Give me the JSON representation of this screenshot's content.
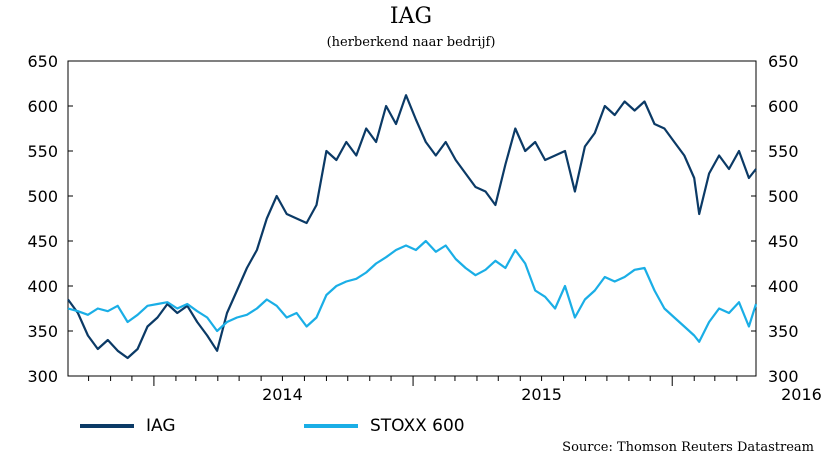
{
  "chart_data": {
    "type": "line",
    "title": "IAG",
    "subtitle": "(herberkend naar bedrijf)",
    "ylim": [
      300,
      650
    ],
    "y_ticks": [
      300,
      350,
      400,
      450,
      500,
      550,
      600,
      650
    ],
    "y_tick_labels": [
      "300",
      "350",
      "400",
      "450",
      "500",
      "550",
      "600",
      "650"
    ],
    "x_range": [
      "2013-09-02",
      "2016-04-28"
    ],
    "x_ticks": [
      "2014",
      "2015",
      "2016"
    ],
    "grid": false,
    "legend": "bottom-left",
    "source": "Source: Thomson Reuters Datastream",
    "series": [
      {
        "name": "IAG",
        "color": "#0b3a66",
        "points": [
          [
            "2013-09-02",
            385
          ],
          [
            "2013-09-16",
            370
          ],
          [
            "2013-09-30",
            345
          ],
          [
            "2013-10-14",
            330
          ],
          [
            "2013-10-28",
            340
          ],
          [
            "2013-11-11",
            328
          ],
          [
            "2013-11-25",
            320
          ],
          [
            "2013-12-09",
            330
          ],
          [
            "2013-12-23",
            355
          ],
          [
            "2014-01-06",
            365
          ],
          [
            "2014-01-20",
            380
          ],
          [
            "2014-02-03",
            370
          ],
          [
            "2014-02-17",
            378
          ],
          [
            "2014-03-03",
            360
          ],
          [
            "2014-03-17",
            345
          ],
          [
            "2014-03-31",
            328
          ],
          [
            "2014-04-14",
            370
          ],
          [
            "2014-04-28",
            395
          ],
          [
            "2014-05-12",
            420
          ],
          [
            "2014-05-26",
            440
          ],
          [
            "2014-06-09",
            475
          ],
          [
            "2014-06-23",
            500
          ],
          [
            "2014-07-07",
            480
          ],
          [
            "2014-07-21",
            475
          ],
          [
            "2014-08-04",
            470
          ],
          [
            "2014-08-18",
            490
          ],
          [
            "2014-09-01",
            550
          ],
          [
            "2014-09-15",
            540
          ],
          [
            "2014-09-29",
            560
          ],
          [
            "2014-10-13",
            545
          ],
          [
            "2014-10-27",
            575
          ],
          [
            "2014-11-10",
            560
          ],
          [
            "2014-11-24",
            600
          ],
          [
            "2014-12-08",
            580
          ],
          [
            "2014-12-22",
            612
          ],
          [
            "2015-01-05",
            585
          ],
          [
            "2015-01-19",
            560
          ],
          [
            "2015-02-02",
            545
          ],
          [
            "2015-02-16",
            560
          ],
          [
            "2015-03-02",
            540
          ],
          [
            "2015-03-16",
            525
          ],
          [
            "2015-03-30",
            510
          ],
          [
            "2015-04-13",
            505
          ],
          [
            "2015-04-27",
            490
          ],
          [
            "2015-05-11",
            535
          ],
          [
            "2015-05-25",
            575
          ],
          [
            "2015-06-08",
            550
          ],
          [
            "2015-06-22",
            560
          ],
          [
            "2015-07-06",
            540
          ],
          [
            "2015-07-20",
            545
          ],
          [
            "2015-08-03",
            550
          ],
          [
            "2015-08-17",
            505
          ],
          [
            "2015-08-31",
            555
          ],
          [
            "2015-09-14",
            570
          ],
          [
            "2015-09-28",
            600
          ],
          [
            "2015-10-12",
            590
          ],
          [
            "2015-10-26",
            605
          ],
          [
            "2015-11-09",
            595
          ],
          [
            "2015-11-23",
            605
          ],
          [
            "2015-12-07",
            580
          ],
          [
            "2015-12-21",
            575
          ],
          [
            "2016-01-04",
            560
          ],
          [
            "2016-01-18",
            545
          ],
          [
            "2016-02-01",
            520
          ],
          [
            "2016-02-08",
            480
          ],
          [
            "2016-02-22",
            525
          ],
          [
            "2016-03-07",
            545
          ],
          [
            "2016-03-21",
            530
          ],
          [
            "2016-04-04",
            550
          ],
          [
            "2016-04-18",
            520
          ],
          [
            "2016-04-28",
            530
          ]
        ]
      },
      {
        "name": "STOXX 600",
        "color": "#1aaee6",
        "points": [
          [
            "2013-09-02",
            375
          ],
          [
            "2013-09-16",
            372
          ],
          [
            "2013-09-30",
            368
          ],
          [
            "2013-10-14",
            375
          ],
          [
            "2013-10-28",
            372
          ],
          [
            "2013-11-11",
            378
          ],
          [
            "2013-11-25",
            360
          ],
          [
            "2013-12-09",
            368
          ],
          [
            "2013-12-23",
            378
          ],
          [
            "2014-01-06",
            380
          ],
          [
            "2014-01-20",
            382
          ],
          [
            "2014-02-03",
            375
          ],
          [
            "2014-02-17",
            380
          ],
          [
            "2014-03-03",
            372
          ],
          [
            "2014-03-17",
            365
          ],
          [
            "2014-03-31",
            350
          ],
          [
            "2014-04-14",
            360
          ],
          [
            "2014-04-28",
            365
          ],
          [
            "2014-05-12",
            368
          ],
          [
            "2014-05-26",
            375
          ],
          [
            "2014-06-09",
            385
          ],
          [
            "2014-06-23",
            378
          ],
          [
            "2014-07-07",
            365
          ],
          [
            "2014-07-21",
            370
          ],
          [
            "2014-08-04",
            355
          ],
          [
            "2014-08-18",
            365
          ],
          [
            "2014-09-01",
            390
          ],
          [
            "2014-09-15",
            400
          ],
          [
            "2014-09-29",
            405
          ],
          [
            "2014-10-13",
            408
          ],
          [
            "2014-10-27",
            415
          ],
          [
            "2014-11-10",
            425
          ],
          [
            "2014-11-24",
            432
          ],
          [
            "2014-12-08",
            440
          ],
          [
            "2014-12-22",
            445
          ],
          [
            "2015-01-05",
            440
          ],
          [
            "2015-01-19",
            450
          ],
          [
            "2015-02-02",
            438
          ],
          [
            "2015-02-16",
            445
          ],
          [
            "2015-03-02",
            430
          ],
          [
            "2015-03-16",
            420
          ],
          [
            "2015-03-30",
            412
          ],
          [
            "2015-04-13",
            418
          ],
          [
            "2015-04-27",
            428
          ],
          [
            "2015-05-11",
            420
          ],
          [
            "2015-05-25",
            440
          ],
          [
            "2015-06-08",
            425
          ],
          [
            "2015-06-22",
            395
          ],
          [
            "2015-07-06",
            388
          ],
          [
            "2015-07-20",
            375
          ],
          [
            "2015-08-03",
            400
          ],
          [
            "2015-08-17",
            365
          ],
          [
            "2015-08-31",
            385
          ],
          [
            "2015-09-14",
            395
          ],
          [
            "2015-09-28",
            410
          ],
          [
            "2015-10-12",
            405
          ],
          [
            "2015-10-26",
            410
          ],
          [
            "2015-11-09",
            418
          ],
          [
            "2015-11-23",
            420
          ],
          [
            "2015-12-07",
            395
          ],
          [
            "2015-12-21",
            375
          ],
          [
            "2016-01-04",
            365
          ],
          [
            "2016-01-18",
            355
          ],
          [
            "2016-02-01",
            345
          ],
          [
            "2016-02-08",
            338
          ],
          [
            "2016-02-22",
            360
          ],
          [
            "2016-03-07",
            375
          ],
          [
            "2016-03-21",
            370
          ],
          [
            "2016-04-04",
            382
          ],
          [
            "2016-04-18",
            355
          ],
          [
            "2016-04-28",
            380
          ]
        ]
      }
    ]
  }
}
